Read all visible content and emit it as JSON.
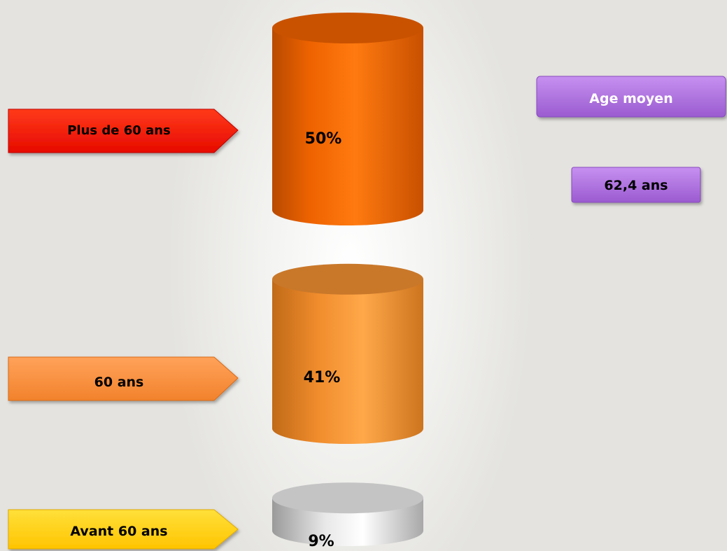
{
  "chart_data": {
    "type": "bar",
    "categories": [
      "Plus de 60 ans",
      "60 ans",
      "Avant 60 ans"
    ],
    "values": [
      50,
      41,
      9
    ],
    "value_labels": [
      "50%",
      "41%",
      "9%"
    ],
    "colors": [
      "#ff2600",
      "#f5903c",
      "#ffcc00"
    ],
    "cylinder_colors": [
      "#f06a00",
      "#f08e2e",
      "#d8d8d8"
    ]
  },
  "side_panel": {
    "title": "Age moyen",
    "value": "62,4 ans",
    "color": "#a96bd6"
  }
}
